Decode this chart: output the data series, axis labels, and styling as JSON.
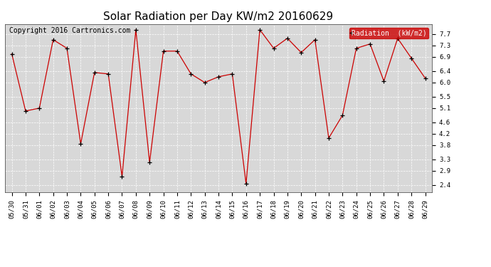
{
  "title": "Solar Radiation per Day KW/m2 20160629",
  "copyright": "Copyright 2016 Cartronics.com",
  "legend_label": "Radiation  (kW/m2)",
  "dates": [
    "05/30",
    "05/31",
    "06/01",
    "06/02",
    "06/03",
    "06/04",
    "06/05",
    "06/06",
    "06/07",
    "06/08",
    "06/09",
    "06/10",
    "06/11",
    "06/12",
    "06/13",
    "06/14",
    "06/15",
    "06/16",
    "06/17",
    "06/18",
    "06/19",
    "06/20",
    "06/21",
    "06/22",
    "06/23",
    "06/24",
    "06/25",
    "06/26",
    "06/27",
    "06/28",
    "06/29"
  ],
  "values": [
    7.0,
    5.0,
    5.1,
    7.5,
    7.2,
    3.85,
    6.35,
    6.3,
    2.7,
    7.85,
    3.2,
    7.1,
    7.1,
    6.3,
    6.0,
    6.2,
    6.3,
    2.45,
    7.85,
    7.2,
    7.55,
    7.05,
    7.5,
    4.05,
    4.85,
    7.2,
    7.35,
    6.05,
    7.55,
    6.85,
    6.15
  ],
  "line_color": "#cc0000",
  "marker_color": "#000000",
  "background_color": "#ffffff",
  "plot_bg_color": "#d8d8d8",
  "grid_color": "#ffffff",
  "title_fontsize": 11,
  "tick_fontsize": 6.5,
  "copyright_fontsize": 7,
  "yticks": [
    2.4,
    2.9,
    3.3,
    3.8,
    4.2,
    4.6,
    5.1,
    5.5,
    6.0,
    6.4,
    6.9,
    7.3,
    7.7
  ],
  "ylim": [
    2.15,
    8.05
  ],
  "legend_bg": "#cc0000",
  "legend_text_color": "#ffffff"
}
